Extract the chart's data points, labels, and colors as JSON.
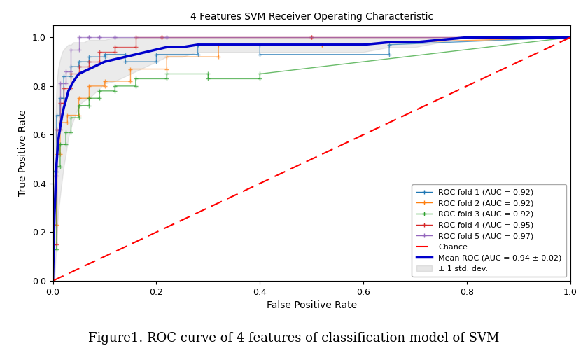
{
  "title": "4 Features SVM Receiver Operating Characteristic",
  "xlabel": "False Positive Rate",
  "ylabel": "True Positive Rate",
  "figcaption": "Figure1. ROC curve of 4 features of classification model of SVM",
  "legend_entries": [
    "ROC fold 1 (AUC = 0.92)",
    "ROC fold 2 (AUC = 0.92)",
    "ROC fold 3 (AUC = 0.92)",
    "ROC fold 4 (AUC = 0.95)",
    "ROC fold 5 (AUC = 0.97)",
    "Chance",
    "Mean ROC (AUC = 0.94 ± 0.02)",
    "± 1 std. dev."
  ],
  "fold_colors": [
    "#1f77b4",
    "#ff7f0e",
    "#2ca02c",
    "#d62728",
    "#9467bd"
  ],
  "mean_color": "#0000cc",
  "chance_color": "#ff0000",
  "std_fill_color": "#b0b0b0",
  "fold1_fpr": [
    0.0,
    0.0,
    0.007,
    0.007,
    0.014,
    0.014,
    0.021,
    0.021,
    0.035,
    0.035,
    0.05,
    0.05,
    0.07,
    0.07,
    0.1,
    0.1,
    0.14,
    0.14,
    0.2,
    0.2,
    0.28,
    0.28,
    0.4,
    0.4,
    0.65,
    0.65,
    1.0
  ],
  "fold1_tpr": [
    0.0,
    0.45,
    0.45,
    0.68,
    0.68,
    0.75,
    0.75,
    0.84,
    0.84,
    0.88,
    0.88,
    0.9,
    0.9,
    0.92,
    0.92,
    0.93,
    0.93,
    0.9,
    0.9,
    0.93,
    0.93,
    0.97,
    0.97,
    0.93,
    0.93,
    0.97,
    1.0
  ],
  "fold2_fpr": [
    0.0,
    0.0,
    0.007,
    0.007,
    0.014,
    0.014,
    0.028,
    0.028,
    0.05,
    0.05,
    0.07,
    0.07,
    0.1,
    0.1,
    0.15,
    0.15,
    0.22,
    0.22,
    0.32,
    0.32,
    0.52,
    0.52,
    1.0
  ],
  "fold2_tpr": [
    0.0,
    0.23,
    0.23,
    0.52,
    0.52,
    0.65,
    0.65,
    0.68,
    0.68,
    0.75,
    0.75,
    0.8,
    0.8,
    0.82,
    0.82,
    0.87,
    0.87,
    0.92,
    0.92,
    0.97,
    0.97,
    0.97,
    1.0
  ],
  "fold3_fpr": [
    0.0,
    0.0,
    0.007,
    0.007,
    0.014,
    0.014,
    0.025,
    0.025,
    0.035,
    0.035,
    0.05,
    0.05,
    0.07,
    0.07,
    0.09,
    0.09,
    0.12,
    0.12,
    0.16,
    0.16,
    0.22,
    0.22,
    0.3,
    0.3,
    0.4,
    0.4,
    1.0
  ],
  "fold3_tpr": [
    0.0,
    0.13,
    0.13,
    0.47,
    0.47,
    0.56,
    0.56,
    0.61,
    0.61,
    0.67,
    0.67,
    0.72,
    0.72,
    0.75,
    0.75,
    0.78,
    0.78,
    0.8,
    0.8,
    0.83,
    0.83,
    0.85,
    0.85,
    0.83,
    0.83,
    0.85,
    1.0
  ],
  "fold4_fpr": [
    0.0,
    0.0,
    0.007,
    0.007,
    0.014,
    0.014,
    0.021,
    0.021,
    0.035,
    0.035,
    0.05,
    0.05,
    0.07,
    0.07,
    0.09,
    0.09,
    0.12,
    0.12,
    0.16,
    0.16,
    0.21,
    0.21,
    0.5,
    0.5,
    1.0
  ],
  "fold4_tpr": [
    0.0,
    0.15,
    0.15,
    0.62,
    0.62,
    0.73,
    0.73,
    0.79,
    0.79,
    0.85,
    0.85,
    0.88,
    0.88,
    0.9,
    0.9,
    0.94,
    0.94,
    0.96,
    0.96,
    1.0,
    1.0,
    1.0,
    1.0,
    1.0,
    1.0
  ],
  "fold5_fpr": [
    0.0,
    0.0,
    0.007,
    0.007,
    0.014,
    0.014,
    0.025,
    0.025,
    0.035,
    0.035,
    0.05,
    0.05,
    0.07,
    0.07,
    0.09,
    0.09,
    0.12,
    0.12,
    0.22,
    0.22,
    1.0
  ],
  "fold5_tpr": [
    0.0,
    0.43,
    0.43,
    0.62,
    0.62,
    0.81,
    0.81,
    0.86,
    0.86,
    0.95,
    0.95,
    1.0,
    1.0,
    1.0,
    1.0,
    1.0,
    1.0,
    1.0,
    1.0,
    1.0,
    1.0
  ],
  "mean_fpr": [
    0.0,
    0.003,
    0.007,
    0.01,
    0.014,
    0.018,
    0.021,
    0.025,
    0.03,
    0.035,
    0.04,
    0.05,
    0.06,
    0.07,
    0.08,
    0.09,
    0.1,
    0.12,
    0.14,
    0.16,
    0.18,
    0.2,
    0.22,
    0.25,
    0.28,
    0.3,
    0.35,
    0.4,
    0.45,
    0.5,
    0.55,
    0.6,
    0.65,
    0.7,
    0.8,
    1.0
  ],
  "mean_tpr": [
    0.0,
    0.27,
    0.48,
    0.57,
    0.63,
    0.68,
    0.71,
    0.74,
    0.78,
    0.8,
    0.82,
    0.85,
    0.86,
    0.87,
    0.88,
    0.89,
    0.9,
    0.91,
    0.92,
    0.93,
    0.94,
    0.95,
    0.96,
    0.96,
    0.97,
    0.97,
    0.97,
    0.97,
    0.97,
    0.97,
    0.97,
    0.97,
    0.98,
    0.98,
    1.0,
    1.0
  ],
  "mean_tpr_upper": [
    0.0,
    0.55,
    0.8,
    0.87,
    0.91,
    0.94,
    0.95,
    0.96,
    0.97,
    0.97,
    0.98,
    0.98,
    0.98,
    0.99,
    0.99,
    0.99,
    0.99,
    1.0,
    1.0,
    1.0,
    1.0,
    1.0,
    1.0,
    1.0,
    1.0,
    1.0,
    1.0,
    1.0,
    1.0,
    1.0,
    1.0,
    1.0,
    1.0,
    1.0,
    1.0,
    1.0
  ],
  "mean_tpr_lower": [
    0.0,
    0.0,
    0.16,
    0.27,
    0.35,
    0.42,
    0.47,
    0.52,
    0.59,
    0.63,
    0.66,
    0.72,
    0.74,
    0.75,
    0.77,
    0.79,
    0.81,
    0.82,
    0.84,
    0.86,
    0.88,
    0.9,
    0.92,
    0.92,
    0.94,
    0.94,
    0.94,
    0.94,
    0.94,
    0.94,
    0.94,
    0.94,
    0.96,
    0.96,
    1.0,
    1.0
  ]
}
